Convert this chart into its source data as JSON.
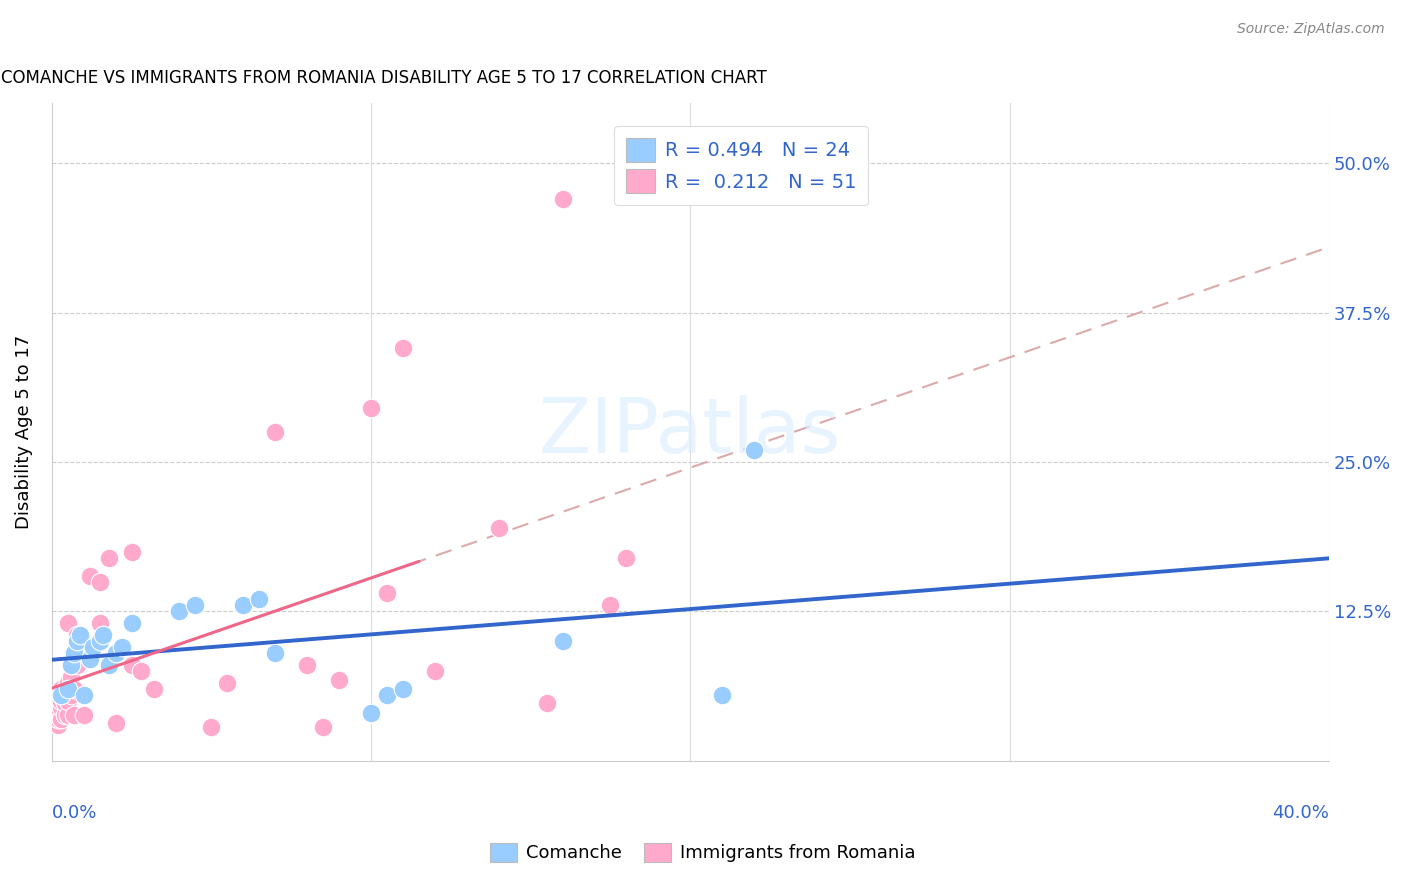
{
  "title": "COMANCHE VS IMMIGRANTS FROM ROMANIA DISABILITY AGE 5 TO 17 CORRELATION CHART",
  "source": "Source: ZipAtlas.com",
  "ylabel": "Disability Age 5 to 17",
  "ytick_labels": [
    "",
    "12.5%",
    "25.0%",
    "37.5%",
    "50.0%"
  ],
  "ytick_values": [
    0.0,
    0.125,
    0.25,
    0.375,
    0.5
  ],
  "xlim": [
    0.0,
    0.4
  ],
  "ylim": [
    0.0,
    0.55
  ],
  "comanche_color": "#99ccff",
  "romania_color": "#ffaacc",
  "comanche_line_color": "#3366cc",
  "romania_line_color": "#ee6688",
  "romania_dash_color": "#ddaaaa",
  "watermark_color": "#ddeeff",
  "comanche_scatter_x": [
    0.003,
    0.005,
    0.006,
    0.007,
    0.008,
    0.009,
    0.01,
    0.012,
    0.013,
    0.015,
    0.016,
    0.018,
    0.02,
    0.022,
    0.025,
    0.04,
    0.045,
    0.06,
    0.065,
    0.07,
    0.1,
    0.105,
    0.11,
    0.16,
    0.21,
    0.22
  ],
  "comanche_scatter_y": [
    0.055,
    0.06,
    0.08,
    0.09,
    0.1,
    0.105,
    0.055,
    0.085,
    0.095,
    0.1,
    0.105,
    0.08,
    0.09,
    0.095,
    0.115,
    0.125,
    0.13,
    0.13,
    0.135,
    0.09,
    0.04,
    0.055,
    0.06,
    0.1,
    0.055,
    0.26
  ],
  "romania_scatter_x": [
    0.001,
    0.001,
    0.001,
    0.002,
    0.002,
    0.002,
    0.002,
    0.003,
    0.003,
    0.003,
    0.003,
    0.003,
    0.004,
    0.004,
    0.004,
    0.005,
    0.005,
    0.005,
    0.005,
    0.006,
    0.006,
    0.006,
    0.007,
    0.007,
    0.008,
    0.008,
    0.01,
    0.012,
    0.015,
    0.015,
    0.018,
    0.02,
    0.025,
    0.025,
    0.028,
    0.032,
    0.05,
    0.055,
    0.07,
    0.08,
    0.085,
    0.09,
    0.1,
    0.105,
    0.11,
    0.12,
    0.14,
    0.155,
    0.16,
    0.175,
    0.18
  ],
  "romania_scatter_y": [
    0.045,
    0.05,
    0.055,
    0.03,
    0.035,
    0.045,
    0.055,
    0.035,
    0.045,
    0.05,
    0.055,
    0.06,
    0.038,
    0.048,
    0.06,
    0.038,
    0.05,
    0.065,
    0.115,
    0.055,
    0.07,
    0.08,
    0.038,
    0.06,
    0.08,
    0.105,
    0.038,
    0.155,
    0.115,
    0.15,
    0.17,
    0.032,
    0.08,
    0.175,
    0.075,
    0.06,
    0.028,
    0.065,
    0.275,
    0.08,
    0.028,
    0.068,
    0.295,
    0.14,
    0.345,
    0.075,
    0.195,
    0.048,
    0.47,
    0.13,
    0.17
  ],
  "romania_line_x_end": 0.115
}
